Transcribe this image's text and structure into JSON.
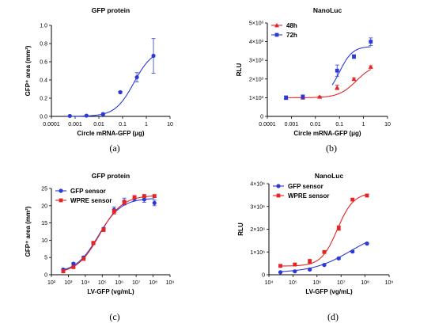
{
  "chart_data": [
    {
      "type": "scatter",
      "id": "a",
      "title": "GFP protein",
      "xlabel": "Circle mRNA-GFP (μg)",
      "ylabel": "GFP⁺ area (mm²)",
      "caption": "(a)",
      "xscale": "log",
      "xlim": [
        0.0001,
        10
      ],
      "ylim": [
        0,
        1.0
      ],
      "xticks": [
        "0.0001",
        "0.001",
        "0.01",
        "0.1",
        "1",
        "10"
      ],
      "yticks": [
        "0.0",
        "0.2",
        "0.4",
        "0.6",
        "0.8",
        "1.0"
      ],
      "color": "#2b3ad6",
      "series": [
        {
          "x": [
            0.0006,
            0.003,
            0.015,
            0.08,
            0.4,
            2.0
          ],
          "y": [
            0.005,
            0.008,
            0.025,
            0.265,
            0.43,
            0.665
          ],
          "err": [
            0.005,
            0.005,
            0.01,
            0.01,
            0.05,
            0.19
          ],
          "marker": "circle",
          "fit": {
            "bottom": 0.0,
            "top": 0.74,
            "ec50": 0.3,
            "hill": 1.1
          }
        }
      ]
    },
    {
      "type": "scatter",
      "id": "b",
      "title": "NanoLuc",
      "xlabel": "Circle mRNA-GFP (μg)",
      "ylabel": "RLU",
      "caption": "(b)",
      "xscale": "log",
      "xlim": [
        0.0001,
        10
      ],
      "ylim": [
        0,
        5000
      ],
      "xticks": [
        "0.0001",
        "0.001",
        "0.01",
        "0.1",
        "1",
        "10"
      ],
      "yticks": [
        "0",
        "1×10³",
        "2×10³",
        "3×10³",
        "4×10³",
        "5×10³"
      ],
      "legend": "top-left",
      "series": [
        {
          "name": "48h",
          "color": "#e82323",
          "marker": "triangle",
          "x": [
            0.0006,
            0.003,
            0.015,
            0.08,
            0.4,
            2.0
          ],
          "y": [
            1000,
            1000,
            1050,
            1550,
            2000,
            2650
          ],
          "err": [
            60,
            60,
            40,
            120,
            60,
            60
          ],
          "fit": {
            "bottom": 1000,
            "top": 2800,
            "ec50": 0.5,
            "hill": 1.2
          }
        },
        {
          "name": "72h",
          "color": "#2b3ad6",
          "marker": "square",
          "x": [
            0.0006,
            0.003,
            0.08,
            0.4,
            2.0
          ],
          "y": [
            1000,
            1050,
            2450,
            3200,
            4000
          ],
          "err": [
            100,
            100,
            300,
            100,
            200
          ],
          "fit": {
            "bottom": 1000,
            "top": 3750,
            "ec50": 0.1,
            "hill": 1.6
          },
          "fit_range": [
            0.05,
            2.0
          ]
        }
      ]
    },
    {
      "type": "scatter",
      "id": "c",
      "title": "GFP protein",
      "xlabel": "LV-GFP (vg/mL)",
      "ylabel": "GFP⁺ area (mm²)",
      "caption": "(c)",
      "xscale": "log",
      "xlim": [
        100,
        1000000000
      ],
      "ylim": [
        0,
        25
      ],
      "xticks": [
        "10²",
        "10³",
        "10⁴",
        "10⁵",
        "10⁶",
        "10⁷",
        "10⁸",
        "10⁹"
      ],
      "yticks": [
        "0",
        "5",
        "10",
        "15",
        "20",
        "25"
      ],
      "legend": "top-left",
      "series": [
        {
          "name": "GFP sensor",
          "color": "#2b3ad6",
          "marker": "circle",
          "x": [
            500,
            2000,
            8000,
            30000,
            120000,
            500000,
            2000000,
            8000000,
            30000000,
            120000000
          ],
          "y": [
            1.5,
            3.2,
            5.0,
            9.1,
            13.3,
            18.8,
            21.2,
            22.1,
            21.8,
            20.8
          ],
          "err": [
            0.3,
            0.3,
            0.4,
            0.4,
            0.4,
            0.8,
            1.0,
            0.6,
            0.8,
            0.8
          ],
          "fit": {
            "bottom": 0.5,
            "top": 22.2,
            "ec50": 60000,
            "hill": 0.65
          }
        },
        {
          "name": "WPRE sensor",
          "color": "#e82323",
          "marker": "square",
          "x": [
            500,
            2000,
            8000,
            30000,
            120000,
            500000,
            2000000,
            8000000,
            30000000,
            120000000
          ],
          "y": [
            1.0,
            2.2,
            4.6,
            9.2,
            13.0,
            18.3,
            21.0,
            22.5,
            22.8,
            22.8
          ],
          "err": [
            0.3,
            0.3,
            0.4,
            0.5,
            0.5,
            0.7,
            0.6,
            0.4,
            0.4,
            0.4
          ],
          "fit": {
            "bottom": 0.3,
            "top": 23.0,
            "ec50": 70000,
            "hill": 0.65
          }
        }
      ]
    },
    {
      "type": "scatter",
      "id": "d",
      "title": "NanoLuc",
      "xlabel": "LV-GFP (vg/mL)",
      "ylabel": "RLU",
      "caption": "(d)",
      "xscale": "log",
      "xlim": [
        10000,
        1000000000
      ],
      "ylim": [
        0,
        4000000
      ],
      "xticks": [
        "10⁴",
        "10⁵",
        "10⁶",
        "10⁷",
        "10⁸",
        "10⁹"
      ],
      "yticks": [
        "0",
        "1×10⁶",
        "2×10⁶",
        "3×10⁶",
        "4×10⁶"
      ],
      "legend": "top-left",
      "series": [
        {
          "name": "GFP sensor",
          "color": "#2b3ad6",
          "marker": "circle",
          "x": [
            30000,
            120000,
            500000,
            2000000,
            8000000,
            30000000,
            120000000
          ],
          "y": [
            110000,
            150000,
            230000,
            430000,
            720000,
            1020000,
            1370000
          ],
          "err": [
            30000,
            30000,
            30000,
            30000,
            40000,
            40000,
            40000
          ],
          "fit": {
            "bottom": 90000,
            "top": 2000000,
            "ec50": 25000000,
            "hill": 0.55
          }
        },
        {
          "name": "WPRE sensor",
          "color": "#e82323",
          "marker": "square",
          "x": [
            30000,
            120000,
            500000,
            2000000,
            8000000,
            30000000,
            120000000
          ],
          "y": [
            390000,
            450000,
            580000,
            1000000,
            2050000,
            3300000,
            3480000
          ],
          "err": [
            40000,
            50000,
            100000,
            60000,
            100000,
            60000,
            60000
          ],
          "fit": {
            "bottom": 380000,
            "top": 3600000,
            "ec50": 7000000,
            "hill": 1.3
          }
        }
      ]
    }
  ]
}
